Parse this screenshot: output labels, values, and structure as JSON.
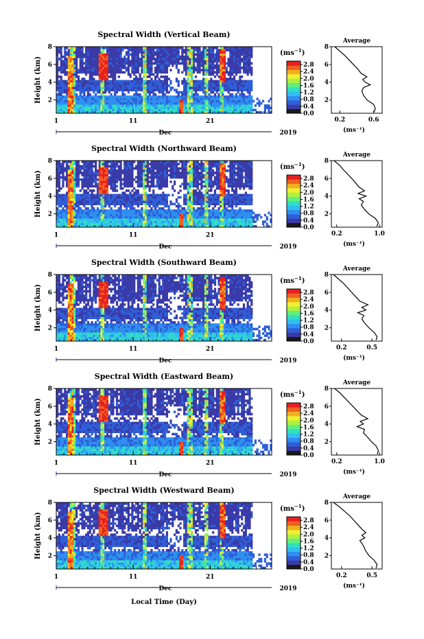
{
  "figure": {
    "x_tick_labels": [
      "1",
      "11",
      "21"
    ],
    "month_label": "Dec",
    "year_label": "2019",
    "bottom_xlabel": "Local Time (Day)",
    "average_title": "Average",
    "ylabel": "Height (km)",
    "colorbar_unit": "(ms",
    "colorbar_unit_exp": "−1",
    "colorbar_unit_close": ")",
    "colors": {
      "colormap": [
        "#1a1a1a",
        "#3a3aa8",
        "#2f5fd8",
        "#2f8ff0",
        "#2fc0f0",
        "#30e0c0",
        "#60f080",
        "#b0f040",
        "#f0f030",
        "#f0b020",
        "#f06020",
        "#e82020"
      ]
    }
  },
  "chart_data": [
    {
      "type": "heatmap",
      "title": "Spectral Width (Vertical Beam)",
      "ylabel": "Height (km)",
      "xlabel": "Dec 2019",
      "x_range_days": [
        1,
        29
      ],
      "y_range_km": [
        0.5,
        8
      ],
      "y_ticks": [
        2,
        4,
        6,
        8
      ],
      "colorbar_ticks": [
        "0.0",
        "0.4",
        "0.8",
        "1.2",
        "1.6",
        "2.0",
        "2.4",
        "2.8"
      ],
      "colorbar_range": [
        0.0,
        3.0
      ],
      "average_profile": {
        "xlabel": "(ms⁻¹)",
        "xticks": [
          "0.2",
          "0.6"
        ],
        "x_range": [
          0.1,
          0.7
        ],
        "height_km": [
          8.0,
          7.5,
          7.0,
          6.5,
          6.0,
          5.5,
          5.0,
          4.6,
          4.3,
          4.0,
          3.7,
          3.4,
          3.0,
          2.5,
          2.0,
          1.5,
          1.0,
          0.6
        ],
        "width_ms": [
          0.14,
          0.2,
          0.26,
          0.31,
          0.36,
          0.41,
          0.45,
          0.52,
          0.47,
          0.5,
          0.56,
          0.48,
          0.46,
          0.48,
          0.52,
          0.6,
          0.62,
          0.6
        ]
      }
    },
    {
      "type": "heatmap",
      "title": "Spectral Width (Northward Beam)",
      "ylabel": "Height (km)",
      "xlabel": "Dec 2019",
      "x_range_days": [
        1,
        29
      ],
      "y_range_km": [
        0.5,
        8
      ],
      "y_ticks": [
        2,
        4,
        6,
        8
      ],
      "colorbar_ticks": [
        "0.0",
        "0.4",
        "0.8",
        "1.2",
        "1.6",
        "2.0",
        "2.4",
        "2.8"
      ],
      "colorbar_range": [
        0.0,
        3.0
      ],
      "average_profile": {
        "xlabel": "(ms⁻¹)",
        "xticks": [
          "0.2",
          "1.0"
        ],
        "x_range": [
          0.1,
          1.05
        ],
        "height_km": [
          8.0,
          7.5,
          7.0,
          6.5,
          6.0,
          5.5,
          5.0,
          4.6,
          4.3,
          4.0,
          3.7,
          3.4,
          3.0,
          2.5,
          2.0,
          1.5,
          1.0,
          0.6
        ],
        "width_ms": [
          0.15,
          0.25,
          0.32,
          0.4,
          0.48,
          0.55,
          0.62,
          0.72,
          0.6,
          0.75,
          0.62,
          0.7,
          0.66,
          0.72,
          0.8,
          0.92,
          0.98,
          0.95
        ]
      }
    },
    {
      "type": "heatmap",
      "title": "Spectral Width (Southward Beam)",
      "ylabel": "Height (km)",
      "xlabel": "Dec 2019",
      "x_range_days": [
        1,
        29
      ],
      "y_range_km": [
        0.5,
        8
      ],
      "y_ticks": [
        2,
        4,
        6,
        8
      ],
      "colorbar_ticks": [
        "0.0",
        "0.4",
        "0.8",
        "1.2",
        "1.6",
        "2.0",
        "2.4",
        "2.8"
      ],
      "colorbar_range": [
        0.0,
        3.0
      ],
      "average_profile": {
        "xlabel": "(ms⁻¹)",
        "xticks": [
          "0.2",
          "0.5"
        ],
        "x_range": [
          0.1,
          0.6
        ],
        "height_km": [
          8.0,
          7.5,
          7.0,
          6.5,
          6.0,
          5.5,
          5.0,
          4.6,
          4.3,
          4.0,
          3.7,
          3.4,
          3.0,
          2.5,
          2.0,
          1.5,
          1.0,
          0.6
        ],
        "width_ms": [
          0.12,
          0.17,
          0.22,
          0.26,
          0.3,
          0.34,
          0.38,
          0.46,
          0.4,
          0.44,
          0.36,
          0.42,
          0.4,
          0.43,
          0.47,
          0.52,
          0.55,
          0.54
        ]
      }
    },
    {
      "type": "heatmap",
      "title": "Spectral Width (Eastward Beam)",
      "ylabel": "Height (km)",
      "xlabel": "Dec 2019",
      "x_range_days": [
        1,
        29
      ],
      "y_range_km": [
        0.5,
        8
      ],
      "y_ticks": [
        2,
        4,
        6,
        8
      ],
      "colorbar_ticks": [
        "0.0",
        "0.4",
        "0.8",
        "1.2",
        "1.6",
        "2.0",
        "2.4",
        "2.8"
      ],
      "colorbar_range": [
        0.0,
        3.0
      ],
      "average_profile": {
        "xlabel": "(ms⁻¹)",
        "xticks": [
          "0.2",
          "1.0"
        ],
        "x_range": [
          0.1,
          1.05
        ],
        "height_km": [
          8.0,
          7.5,
          7.0,
          6.5,
          6.0,
          5.5,
          5.0,
          4.6,
          4.3,
          4.0,
          3.7,
          3.4,
          3.0,
          2.5,
          2.0,
          1.5,
          1.0,
          0.6
        ],
        "width_ms": [
          0.16,
          0.26,
          0.34,
          0.42,
          0.5,
          0.58,
          0.66,
          0.78,
          0.64,
          0.7,
          0.58,
          0.72,
          0.7,
          0.78,
          0.85,
          0.94,
          0.98,
          0.96
        ]
      }
    },
    {
      "type": "heatmap",
      "title": "Spectral Width (Westward Beam)",
      "ylabel": "Height (km)",
      "xlabel": "Dec 2019",
      "x_range_days": [
        1,
        29
      ],
      "y_range_km": [
        0.5,
        8
      ],
      "y_ticks": [
        2,
        4,
        6,
        8
      ],
      "colorbar_ticks": [
        "0.0",
        "0.4",
        "0.8",
        "1.2",
        "1.6",
        "2.0",
        "2.4",
        "2.8"
      ],
      "colorbar_range": [
        0.0,
        3.0
      ],
      "average_profile": {
        "xlabel": "(ms⁻¹)",
        "xticks": [
          "0.2",
          "0.5"
        ],
        "x_range": [
          0.1,
          0.6
        ],
        "height_km": [
          8.0,
          7.5,
          7.0,
          6.5,
          6.0,
          5.5,
          5.0,
          4.6,
          4.3,
          4.0,
          3.7,
          3.4,
          3.0,
          2.5,
          2.0,
          1.5,
          1.0,
          0.6
        ],
        "width_ms": [
          0.12,
          0.18,
          0.23,
          0.28,
          0.32,
          0.36,
          0.4,
          0.44,
          0.4,
          0.43,
          0.38,
          0.4,
          0.42,
          0.44,
          0.47,
          0.52,
          0.55,
          0.54
        ]
      }
    }
  ]
}
